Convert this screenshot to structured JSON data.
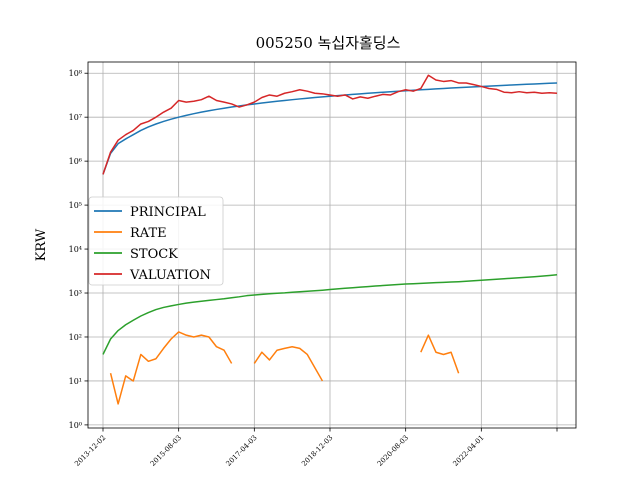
{
  "chart_data": {
    "type": "line",
    "title": "005250 녹십자홀딩스",
    "y_label": "KRW",
    "log_y": true,
    "grid": true,
    "legend": "center left",
    "categories": [
      "2013-12-02",
      null,
      null,
      null,
      null,
      null,
      null,
      null,
      null,
      null,
      "2015-08-03",
      null,
      null,
      null,
      null,
      null,
      null,
      null,
      null,
      null,
      "2017-04-03",
      null,
      null,
      null,
      null,
      null,
      null,
      null,
      null,
      null,
      "2018-12-03",
      null,
      null,
      null,
      null,
      null,
      null,
      null,
      null,
      null,
      "2020-08-03",
      null,
      null,
      null,
      null,
      null,
      null,
      null,
      null,
      null,
      "2022-04-01",
      null,
      null,
      null,
      null,
      null,
      null,
      null,
      null,
      null,
      null
    ],
    "xticks": [
      0,
      10,
      20,
      30,
      40,
      50,
      60
    ],
    "ylim": [
      0.85,
      180000000.0
    ],
    "yticks": [
      {
        "value": 1,
        "label": "10⁰"
      },
      {
        "value": 10,
        "label": "10¹"
      },
      {
        "value": 100,
        "label": "10²"
      },
      {
        "value": 1000,
        "label": "10³"
      },
      {
        "value": 10000,
        "label": "10⁴"
      },
      {
        "value": 100000,
        "label": "10⁵"
      },
      {
        "value": 1000000,
        "label": "10⁶"
      },
      {
        "value": 10000000,
        "label": "10⁷"
      },
      {
        "value": 100000000,
        "label": "10⁸"
      }
    ],
    "series": [
      {
        "name": "PRINCIPAL",
        "color": "#1f77b4",
        "values": [
          500000.0,
          1500000.0,
          2500000.0,
          3200000.0,
          4000000.0,
          5000000.0,
          6000000.0,
          7000000.0,
          8000000.0,
          9000000.0,
          10000000.0,
          11000000.0,
          12000000.0,
          13000000.0,
          14000000.0,
          15000000.0,
          16000000.0,
          17000000.0,
          18000000.0,
          19000000.0,
          20000000.0,
          21000000.0,
          22000000.0,
          23000000.0,
          24000000.0,
          25000000.0,
          26000000.0,
          27000000.0,
          28000000.0,
          29000000.0,
          30000000.0,
          31000000.0,
          32000000.0,
          33000000.0,
          34000000.0,
          35000000.0,
          36000000.0,
          37000000.0,
          38000000.0,
          39000000.0,
          40000000.0,
          41000000.0,
          42000000.0,
          43000000.0,
          44000000.0,
          45000000.0,
          46000000.0,
          47000000.0,
          48000000.0,
          49000000.0,
          50000000.0,
          51000000.0,
          52000000.0,
          53000000.0,
          54000000.0,
          55000000.0,
          56000000.0,
          57000000.0,
          58000000.0,
          59000000.0,
          60000000.0
        ]
      },
      {
        "name": "RATE",
        "color": "#ff7f0e",
        "values": [
          null,
          15,
          3,
          13,
          10,
          40,
          28,
          32,
          55,
          90,
          130,
          110,
          100,
          110,
          100,
          60,
          50,
          25,
          null,
          null,
          25,
          45,
          30,
          50,
          55,
          60,
          55,
          40,
          20,
          10,
          null,
          null,
          null,
          null,
          null,
          null,
          null,
          null,
          null,
          null,
          null,
          null,
          45,
          110,
          45,
          40,
          45,
          15,
          null,
          null,
          null,
          null,
          null,
          null,
          null,
          null,
          null,
          null,
          null,
          null,
          null
        ]
      },
      {
        "name": "STOCK",
        "color": "#2ca02c",
        "values": [
          40,
          90,
          140,
          190,
          240,
          300,
          360,
          420,
          470,
          510,
          550,
          590,
          620,
          650,
          680,
          710,
          740,
          780,
          820,
          870,
          900,
          930,
          960,
          990,
          1010,
          1040,
          1070,
          1100,
          1130,
          1160,
          1200,
          1240,
          1280,
          1320,
          1360,
          1400,
          1440,
          1480,
          1520,
          1560,
          1600,
          1630,
          1660,
          1690,
          1720,
          1750,
          1780,
          1810,
          1850,
          1900,
          1950,
          2000,
          2050,
          2110,
          2170,
          2230,
          2290,
          2350,
          2420,
          2500,
          2600
        ]
      },
      {
        "name": "VALUATION",
        "color": "#d62728",
        "values": [
          500000.0,
          1600000.0,
          3000000.0,
          4000000.0,
          5000000.0,
          7000000.0,
          8000000.0,
          10000000.0,
          13000000.0,
          16000000.0,
          24000000.0,
          22000000.0,
          23000000.0,
          25000000.0,
          30000000.0,
          24000000.0,
          22000000.0,
          20000000.0,
          17000000.0,
          19000000.0,
          22000000.0,
          28000000.0,
          32000000.0,
          30000000.0,
          35000000.0,
          38000000.0,
          42000000.0,
          39000000.0,
          35000000.0,
          34000000.0,
          32000000.0,
          30000000.0,
          32000000.0,
          26000000.0,
          29000000.0,
          27000000.0,
          30000000.0,
          33000000.0,
          32000000.0,
          38000000.0,
          42000000.0,
          39000000.0,
          45000000.0,
          90000000.0,
          70000000.0,
          65000000.0,
          68000000.0,
          60000000.0,
          60000000.0,
          55000000.0,
          50000000.0,
          45000000.0,
          43000000.0,
          37000000.0,
          36000000.0,
          38000000.0,
          36000000.0,
          37000000.0,
          35000000.0,
          36000000.0,
          35000000.0
        ]
      }
    ]
  }
}
